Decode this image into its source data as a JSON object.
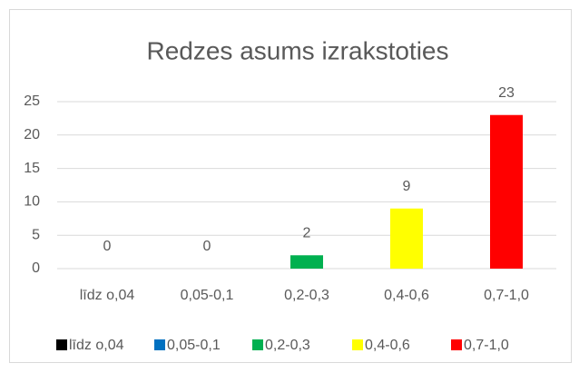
{
  "chart_data": {
    "type": "bar",
    "title": "Redzes asums izrakstoties",
    "categories": [
      "līdz o,04",
      "0,05-0,1",
      "0,2-0,3",
      "0,4-0,6",
      "0,7-1,0"
    ],
    "values": [
      0,
      0,
      2,
      9,
      23
    ],
    "colors": [
      "#000000",
      "#0070c0",
      "#00b050",
      "#ffff00",
      "#ff0000"
    ],
    "ylim": [
      0,
      25
    ],
    "yticks": [
      0,
      5,
      10,
      15,
      20,
      25
    ],
    "grid": true,
    "legend": "bottom"
  }
}
